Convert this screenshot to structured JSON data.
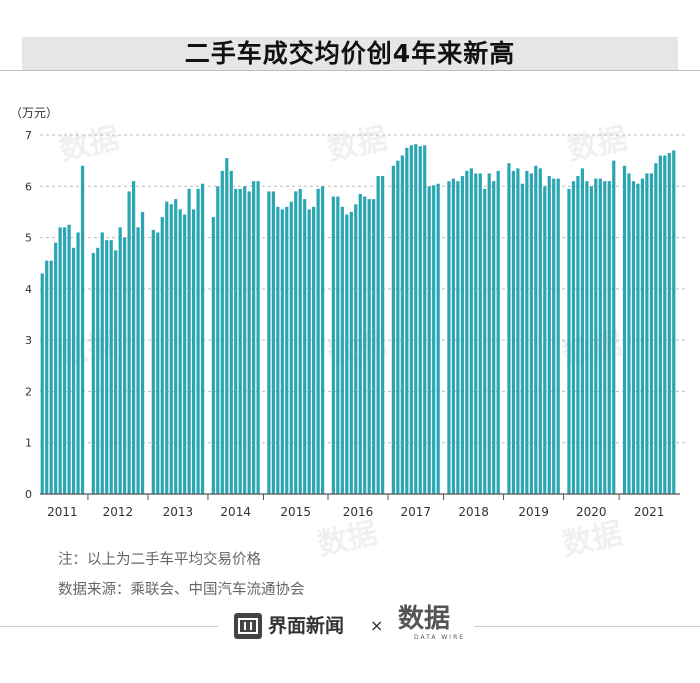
{
  "title": "二手车成交均价创4年来新高",
  "notes": {
    "line1": "注：以上为二手车平均交易价格",
    "line2": "数据来源：乘联会、中国汽车流通协会"
  },
  "footer": {
    "brand1": "界面新闻",
    "times": "×",
    "brand2": "数据",
    "brand2_sub": "DATA WIRE"
  },
  "watermark_text": "数据",
  "colors": {
    "bar": "#2aa6b3",
    "grid": "#bcbcbc",
    "axis": "#555555",
    "text": "#333333"
  },
  "chart_data": {
    "type": "bar",
    "ylabel": "（万元）",
    "ylim": [
      0,
      7
    ],
    "yticks": [
      0,
      1,
      2,
      3,
      4,
      5,
      6,
      7
    ],
    "grid": "dashed horizontal",
    "groups": [
      {
        "year": "2011",
        "values": [
          4.3,
          4.55,
          4.55,
          4.9,
          5.2,
          5.2,
          5.25,
          4.8,
          5.1,
          6.4
        ]
      },
      {
        "year": "2012",
        "values": [
          4.7,
          4.8,
          5.1,
          4.95,
          4.95,
          4.75,
          5.2,
          5.0,
          5.9,
          6.1,
          5.2,
          5.5
        ]
      },
      {
        "year": "2013",
        "values": [
          5.15,
          5.1,
          5.4,
          5.7,
          5.65,
          5.75,
          5.55,
          5.45,
          5.95,
          5.55,
          5.95,
          6.05
        ]
      },
      {
        "year": "2014",
        "values": [
          5.4,
          6.0,
          6.3,
          6.55,
          6.3,
          5.95,
          5.95,
          6.0,
          5.9,
          6.1,
          6.1
        ]
      },
      {
        "year": "2015",
        "values": [
          5.9,
          5.9,
          5.6,
          5.55,
          5.6,
          5.7,
          5.9,
          5.95,
          5.75,
          5.55,
          5.6,
          5.95,
          6.0
        ]
      },
      {
        "year": "2016",
        "values": [
          5.8,
          5.8,
          5.6,
          5.45,
          5.5,
          5.65,
          5.85,
          5.8,
          5.75,
          5.75,
          6.2,
          6.2
        ]
      },
      {
        "year": "2017",
        "values": [
          6.4,
          6.5,
          6.6,
          6.75,
          6.8,
          6.82,
          6.78,
          6.8,
          6.0,
          6.02,
          6.05
        ]
      },
      {
        "year": "2018",
        "values": [
          6.1,
          6.15,
          6.1,
          6.2,
          6.3,
          6.35,
          6.25,
          6.25,
          5.95,
          6.25,
          6.1,
          6.3
        ]
      },
      {
        "year": "2019",
        "values": [
          6.45,
          6.3,
          6.35,
          6.05,
          6.3,
          6.25,
          6.4,
          6.35,
          6.0,
          6.2,
          6.15,
          6.15
        ]
      },
      {
        "year": "2020",
        "values": [
          5.95,
          6.1,
          6.2,
          6.35,
          6.1,
          6.0,
          6.15,
          6.15,
          6.1,
          6.1,
          6.5
        ]
      },
      {
        "year": "2021",
        "values": [
          6.4,
          6.25,
          6.1,
          6.05,
          6.15,
          6.25,
          6.25,
          6.45,
          6.6,
          6.6,
          6.65,
          6.7
        ]
      }
    ]
  }
}
